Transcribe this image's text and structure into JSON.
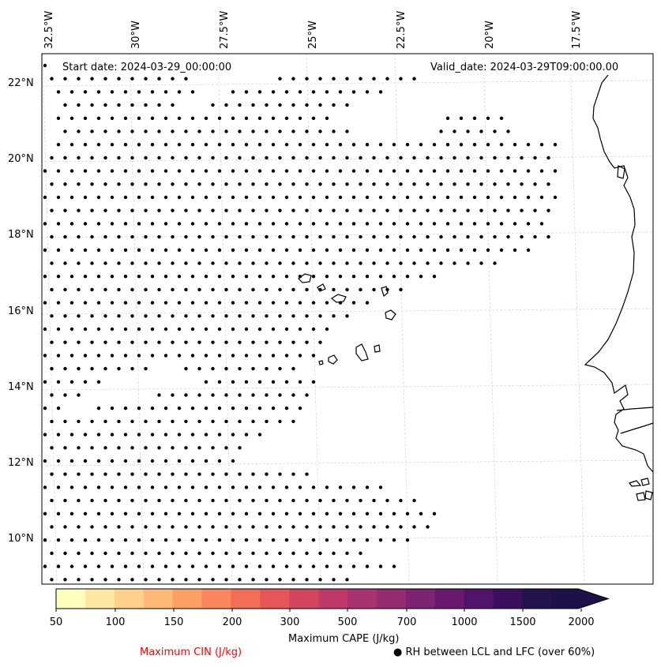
{
  "map": {
    "start_date": "Start date: 2024-03-29_00:00:00",
    "valid_date": "Valid_date: 2024-03-29T09:00:00.00",
    "lon_labels": [
      "32.5°W",
      "30°W",
      "27.5°W",
      "25°W",
      "22.5°W",
      "20°W",
      "17.5°W"
    ],
    "lat_labels": [
      "22°N",
      "20°N",
      "18°N",
      "16°N",
      "14°N",
      "12°N",
      "10°N"
    ],
    "dot_color": "#000000",
    "gridline_color": "#d9d9d9",
    "coastline_color": "#000000"
  },
  "colorbar": {
    "label": "Maximum CAPE (J/kg)",
    "ticks": [
      "50",
      "100",
      "150",
      "200",
      "300",
      "500",
      "700",
      "1000",
      "1500",
      "2000"
    ],
    "colors": [
      "#fefebd",
      "#fee7a3",
      "#fed08b",
      "#feb877",
      "#fc9f67",
      "#fa865c",
      "#f46d56",
      "#e65659",
      "#d44561",
      "#bf3a6a",
      "#a8336f",
      "#932c71",
      "#7e2371",
      "#691a6f",
      "#52136b",
      "#3b0f5e",
      "#24124a",
      "#1d1147"
    ]
  },
  "legend": {
    "cin_label": "Maximum CIN (J/kg)",
    "cin_color": "#ff0000",
    "rh_symbol": "●",
    "rh_label": "RH between LCL and LFC (over 60%)"
  }
}
